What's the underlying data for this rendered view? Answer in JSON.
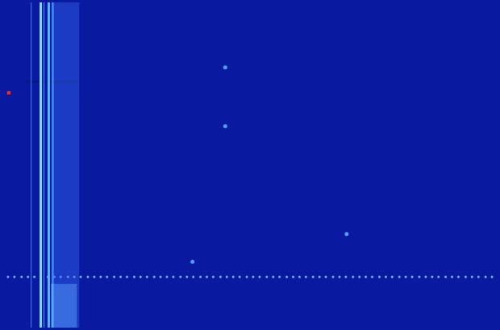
{
  "chart_data": {
    "type": "scatter",
    "xlim": [
      0,
      620
    ],
    "ylim": [
      410,
      0
    ],
    "grid": false,
    "tick_labels": false,
    "series": [
      {
        "type": "line",
        "line_style": "wide",
        "color": "rgba(50,100,240,0.45)",
        "x": [
          80,
          80
        ],
        "values": [
          0,
          410
        ]
      },
      {
        "type": "line",
        "line_style": "wide",
        "color": "rgba(110,200,255,0.5)",
        "x": [
          77,
          77
        ],
        "values": [
          355,
          410
        ]
      },
      {
        "type": "line",
        "line_style": "thin",
        "color": "#2f5fe0",
        "x": [
          36,
          36
        ],
        "values": [
          0,
          410
        ]
      },
      {
        "type": "line",
        "line_style": "solid",
        "color": "#7fd8ff",
        "x": [
          48,
          48
        ],
        "values": [
          0,
          410
        ]
      },
      {
        "type": "line",
        "line_style": "thin",
        "color": "#3a78f0",
        "x": [
          52,
          52
        ],
        "values": [
          0,
          410
        ]
      },
      {
        "type": "line",
        "line_style": "solid",
        "color": "#55b8ff",
        "x": [
          58,
          58
        ],
        "values": [
          0,
          410
        ]
      },
      {
        "type": "line",
        "line_style": "solid",
        "color": "#3d86f5",
        "x": [
          63,
          63
        ],
        "values": [
          0,
          410
        ]
      },
      {
        "type": "line",
        "line_style": "solid",
        "color": "#0a1780",
        "x": [
          30,
          95
        ],
        "values": [
          100,
          100
        ]
      },
      {
        "type": "scatter",
        "marker": "circle",
        "color": "#4f9dff",
        "x": [
          279,
          279,
          431,
          238
        ],
        "values": [
          82,
          156,
          292,
          327
        ]
      },
      {
        "type": "scatter",
        "marker": "dot",
        "color": "#6fb0ff",
        "x": [
          7,
          15,
          24,
          32,
          40,
          48,
          57,
          65,
          73,
          82,
          90,
          98,
          107,
          115,
          123,
          131,
          140,
          148,
          156,
          165,
          173,
          181,
          190,
          198,
          206,
          214,
          223,
          231,
          239,
          248,
          256,
          264,
          273,
          281,
          289,
          297,
          306,
          314,
          322,
          331,
          339,
          347,
          356,
          364,
          372,
          380,
          389,
          397,
          405,
          414,
          422,
          430,
          439,
          447,
          455,
          463,
          472,
          480,
          488,
          497,
          505,
          513,
          522,
          530,
          538,
          546,
          555,
          563,
          571,
          580,
          588,
          596,
          605,
          613
        ],
        "values": [
          346,
          346,
          346,
          346,
          346,
          346,
          346,
          346,
          346,
          346,
          346,
          346,
          346,
          346,
          346,
          346,
          346,
          346,
          346,
          346,
          346,
          346,
          346,
          346,
          346,
          346,
          346,
          346,
          346,
          346,
          346,
          346,
          346,
          346,
          346,
          346,
          346,
          346,
          346,
          346,
          346,
          346,
          346,
          346,
          346,
          346,
          346,
          346,
          346,
          346,
          346,
          346,
          346,
          346,
          346,
          346,
          346,
          346,
          346,
          346,
          346,
          346,
          346,
          346,
          346,
          346,
          346,
          346,
          346,
          346,
          346,
          346,
          346,
          346
        ]
      },
      {
        "type": "scatter",
        "marker": "square",
        "color": "#ff2a10",
        "x": [
          8
        ],
        "values": [
          114
        ]
      }
    ]
  }
}
